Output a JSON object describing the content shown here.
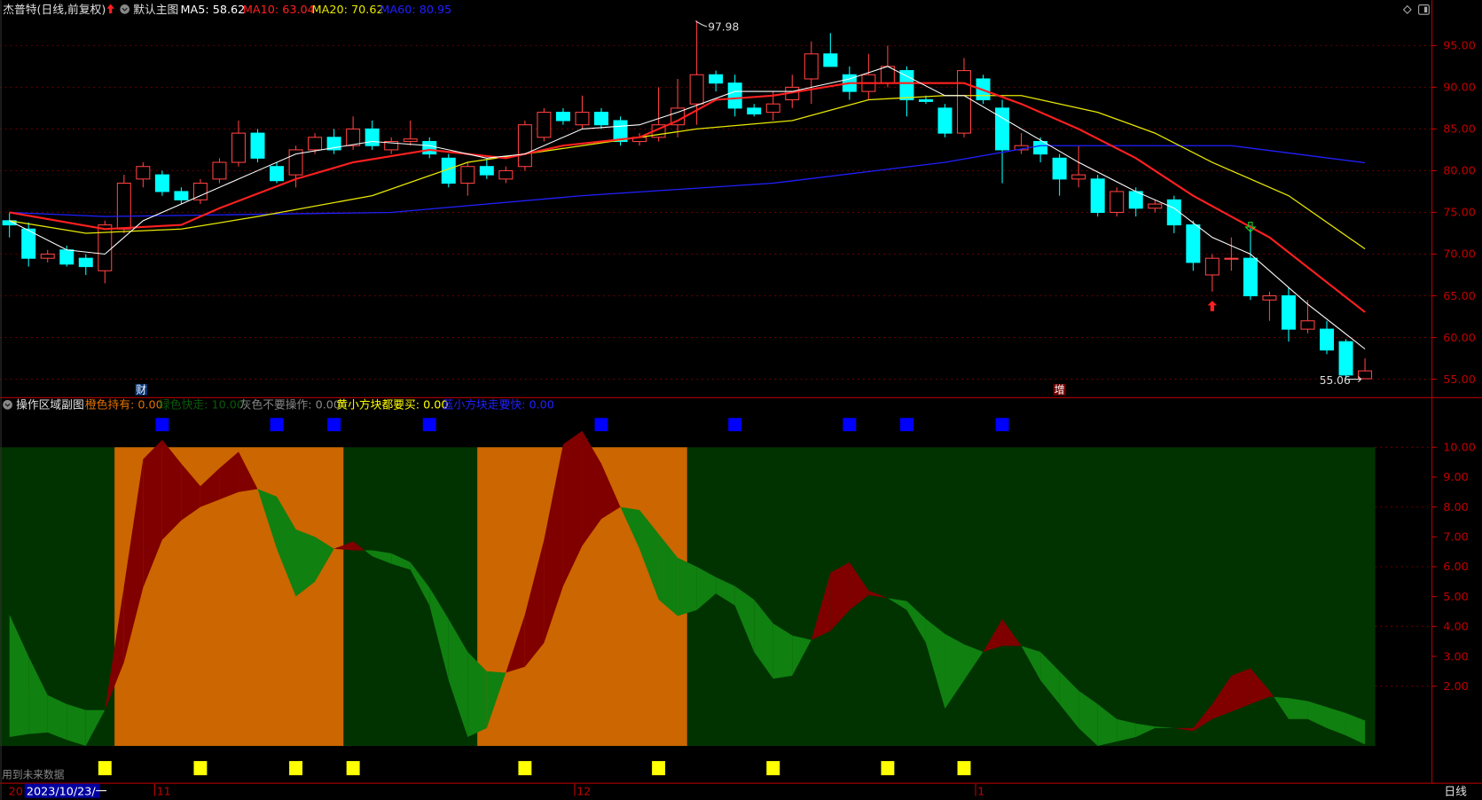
{
  "header": {
    "title": "杰普特(日线,前复权)",
    "main_chart_name": "默认主图",
    "ma5": "MA5: 58.62",
    "ma10": "MA10: 63.04",
    "ma20": "MA20: 70.62",
    "ma60": "MA60: 80.95",
    "colors": {
      "ma5": "#ffffff",
      "ma10": "#ff2020",
      "ma20": "#e8e800",
      "ma60": "#2020ff"
    }
  },
  "sub_header": {
    "name": "操作区域副图",
    "orange": "橙色持有: 0.00",
    "green": "绿色快走: 10.00",
    "gray": "灰色不要操作: 0.00",
    "yellow": "黄小方块都要买: 0.00",
    "blue": "蓝小方块走要快: 0.00"
  },
  "annotations": {
    "high_label": "97.98",
    "low_label": "55.06",
    "marker_cai": "财",
    "marker_zeng": "增",
    "future_data_note": "用到未来数据"
  },
  "date_axis": {
    "year_prefix": "20",
    "cursor_date": "2023/10/23/一",
    "months": [
      {
        "label": "11",
        "index": 8
      },
      {
        "label": "12",
        "index": 30
      },
      {
        "label": "1",
        "index": 51
      }
    ],
    "period_button": "日线"
  },
  "price_axis": {
    "ticks": [
      "95.00",
      "90.00",
      "85.00",
      "80.00",
      "75.00",
      "70.00",
      "65.00",
      "60.00",
      "55.00"
    ]
  },
  "sub_axis": {
    "ticks": [
      "10.00",
      "9.00",
      "8.00",
      "7.00",
      "6.00",
      "5.00",
      "4.00",
      "3.00",
      "2.00"
    ]
  },
  "colors": {
    "up": "#ff4040",
    "down": "#00ffff",
    "grid": "#7a0000",
    "axis": "#c00000",
    "sub_bg": "#003300",
    "orange": "#cc6600",
    "green_fill": "#108010",
    "red_fill": "#800000",
    "blue_square": "#0000ff",
    "yellow_square": "#ffff00"
  },
  "chart_data": {
    "type": "candlestick",
    "price_range": [
      55,
      95
    ],
    "candles_ohlc": [
      [
        74.0,
        75.0,
        72.0,
        73.5
      ],
      [
        73.0,
        73.8,
        68.5,
        69.5
      ],
      [
        69.5,
        70.5,
        69.0,
        70.0
      ],
      [
        70.5,
        71.0,
        68.5,
        68.8
      ],
      [
        69.5,
        70.0,
        67.5,
        68.5
      ],
      [
        68.0,
        74.0,
        66.5,
        73.5
      ],
      [
        73.0,
        79.5,
        72.5,
        78.5
      ],
      [
        79.0,
        81.0,
        78.0,
        80.5
      ],
      [
        79.5,
        80.0,
        77.0,
        77.5
      ],
      [
        77.5,
        78.0,
        76.0,
        76.5
      ],
      [
        76.5,
        79.0,
        76.0,
        78.5
      ],
      [
        79.0,
        81.5,
        78.5,
        81.0
      ],
      [
        81.0,
        86.0,
        80.5,
        84.5
      ],
      [
        84.5,
        85.0,
        81.0,
        81.5
      ],
      [
        80.5,
        81.0,
        78.5,
        78.8
      ],
      [
        79.5,
        83.0,
        78.0,
        82.5
      ],
      [
        82.5,
        84.5,
        82.0,
        84.0
      ],
      [
        84.0,
        85.0,
        82.0,
        82.5
      ],
      [
        83.0,
        86.5,
        82.5,
        85.0
      ],
      [
        85.0,
        86.0,
        82.5,
        83.0
      ],
      [
        82.5,
        84.0,
        82.0,
        83.5
      ],
      [
        83.5,
        86.0,
        83.0,
        83.8
      ],
      [
        83.5,
        84.0,
        81.5,
        82.0
      ],
      [
        81.5,
        82.0,
        78.0,
        78.5
      ],
      [
        78.5,
        81.0,
        77.0,
        80.5
      ],
      [
        80.5,
        81.5,
        79.0,
        79.5
      ],
      [
        79.0,
        80.5,
        78.5,
        80.0
      ],
      [
        80.5,
        86.0,
        80.0,
        85.5
      ],
      [
        84.0,
        87.5,
        83.5,
        87.0
      ],
      [
        87.0,
        87.5,
        85.5,
        86.0
      ],
      [
        85.5,
        89.0,
        85.0,
        87.0
      ],
      [
        87.0,
        87.5,
        85.0,
        85.5
      ],
      [
        86.0,
        86.5,
        83.0,
        83.5
      ],
      [
        83.5,
        84.5,
        83.0,
        84.0
      ],
      [
        84.0,
        90.0,
        83.5,
        85.5
      ],
      [
        85.5,
        91.0,
        84.0,
        87.5
      ],
      [
        88.0,
        97.98,
        85.5,
        91.5
      ],
      [
        91.5,
        92.0,
        89.5,
        90.5
      ],
      [
        90.5,
        91.5,
        86.5,
        87.5
      ],
      [
        87.5,
        88.0,
        86.5,
        86.8
      ],
      [
        87.0,
        89.5,
        86.0,
        88.0
      ],
      [
        88.5,
        91.5,
        87.5,
        90.0
      ],
      [
        91.0,
        95.5,
        88.0,
        94.0
      ],
      [
        94.0,
        96.5,
        92.5,
        92.5
      ],
      [
        91.5,
        92.5,
        88.5,
        89.5
      ],
      [
        89.5,
        94.0,
        88.5,
        91.5
      ],
      [
        90.5,
        95.0,
        90.0,
        92.5
      ],
      [
        92.0,
        92.5,
        86.5,
        88.5
      ],
      [
        88.5,
        89.0,
        88.0,
        88.3
      ],
      [
        87.5,
        88.0,
        84.0,
        84.5
      ],
      [
        84.5,
        93.5,
        84.0,
        92.0
      ],
      [
        91.0,
        91.5,
        88.0,
        88.5
      ],
      [
        87.5,
        88.5,
        78.5,
        82.5
      ],
      [
        82.5,
        84.5,
        82.0,
        83.0
      ],
      [
        83.5,
        84.0,
        81.0,
        82.0
      ],
      [
        81.5,
        82.0,
        77.0,
        79.0
      ],
      [
        79.0,
        83.0,
        78.0,
        79.5
      ],
      [
        79.0,
        79.5,
        74.5,
        75.0
      ],
      [
        75.0,
        78.0,
        74.5,
        77.5
      ],
      [
        77.5,
        78.0,
        74.5,
        75.5
      ],
      [
        75.5,
        76.5,
        75.0,
        76.0
      ],
      [
        76.5,
        77.0,
        72.5,
        73.5
      ],
      [
        73.5,
        74.0,
        68.0,
        69.0
      ],
      [
        67.5,
        70.0,
        65.5,
        69.5
      ],
      [
        69.5,
        72.0,
        68.0,
        69.5
      ],
      [
        69.5,
        73.5,
        64.5,
        65.0
      ],
      [
        64.5,
        65.5,
        62.0,
        65.0
      ],
      [
        65.0,
        66.0,
        59.5,
        61.0
      ],
      [
        61.0,
        64.5,
        60.5,
        62.0
      ],
      [
        61.0,
        62.0,
        58.0,
        58.5
      ],
      [
        59.5,
        59.8,
        55.06,
        55.5
      ],
      [
        55.06,
        57.5,
        55.06,
        56.0
      ]
    ],
    "ma5": [
      [
        0,
        74
      ],
      [
        3,
        70.5
      ],
      [
        5,
        70
      ],
      [
        7,
        74
      ],
      [
        10,
        77
      ],
      [
        13,
        80
      ],
      [
        15,
        82
      ],
      [
        19,
        83.5
      ],
      [
        22,
        83
      ],
      [
        25,
        81.5
      ],
      [
        27,
        82
      ],
      [
        30,
        85
      ],
      [
        33,
        85.5
      ],
      [
        35,
        87
      ],
      [
        38,
        89.5
      ],
      [
        41,
        89.5
      ],
      [
        44,
        91
      ],
      [
        46,
        92.5
      ],
      [
        49,
        89
      ],
      [
        50,
        89
      ],
      [
        53,
        85
      ],
      [
        56,
        81
      ],
      [
        59,
        77.5
      ],
      [
        61,
        75.5
      ],
      [
        63,
        72
      ],
      [
        65,
        70
      ],
      [
        68,
        64
      ],
      [
        71,
        58.62
      ]
    ],
    "ma10": [
      [
        0,
        75
      ],
      [
        5,
        73
      ],
      [
        9,
        73.5
      ],
      [
        11,
        75.5
      ],
      [
        15,
        79
      ],
      [
        18,
        81
      ],
      [
        22,
        82.5
      ],
      [
        26,
        81.5
      ],
      [
        29,
        83
      ],
      [
        33,
        84
      ],
      [
        35,
        86
      ],
      [
        37,
        88.5
      ],
      [
        40,
        89
      ],
      [
        44,
        90.5
      ],
      [
        47,
        90.5
      ],
      [
        50,
        90.5
      ],
      [
        53,
        88
      ],
      [
        56,
        85
      ],
      [
        59,
        81.5
      ],
      [
        62,
        77
      ],
      [
        66,
        72
      ],
      [
        71,
        63.04
      ]
    ],
    "ma20": [
      [
        0,
        74
      ],
      [
        4,
        72.5
      ],
      [
        9,
        73
      ],
      [
        13,
        74.5
      ],
      [
        19,
        77
      ],
      [
        24,
        81
      ],
      [
        30,
        83
      ],
      [
        36,
        85
      ],
      [
        41,
        86
      ],
      [
        45,
        88.5
      ],
      [
        49,
        89
      ],
      [
        53,
        89
      ],
      [
        57,
        87
      ],
      [
        60,
        84.5
      ],
      [
        63,
        81
      ],
      [
        67,
        77
      ],
      [
        71,
        70.62
      ]
    ],
    "ma60": [
      [
        0,
        75
      ],
      [
        5,
        74.5
      ],
      [
        20,
        75
      ],
      [
        30,
        77
      ],
      [
        40,
        78.5
      ],
      [
        49,
        81
      ],
      [
        54,
        83
      ],
      [
        64,
        83
      ],
      [
        71,
        80.95
      ]
    ],
    "sub_range": [
      0,
      10
    ],
    "sub_fast": [
      0.3,
      0.4,
      0.45,
      0.2,
      0.0,
      1.2,
      5.35,
      9.6,
      10.25,
      9.45,
      8.7,
      9.3,
      9.85,
      8.6,
      6.6,
      5.0,
      5.5,
      6.6,
      6.85,
      6.35,
      6.1,
      5.9,
      4.7,
      2.2,
      0.3,
      0.6,
      2.45,
      4.4,
      6.9,
      10.1,
      10.55,
      9.45,
      8.0,
      6.6,
      4.9,
      4.35,
      4.55,
      5.1,
      4.7,
      3.15,
      2.25,
      2.35,
      3.55,
      5.8,
      6.15,
      5.2,
      4.95,
      4.55,
      3.45,
      1.25,
      2.2,
      3.15,
      4.25,
      3.35,
      2.2,
      1.4,
      0.6,
      0.0,
      0.15,
      0.3,
      0.6,
      0.6,
      0.6,
      1.4,
      2.35,
      2.6,
      1.85,
      0.9,
      0.9,
      0.6,
      0.35,
      0.05
    ],
    "sub_slow": [
      4.4,
      3.0,
      1.7,
      1.4,
      1.2,
      1.2,
      2.8,
      5.3,
      6.9,
      7.55,
      8.0,
      8.25,
      8.5,
      8.6,
      8.35,
      7.25,
      7.0,
      6.6,
      6.55,
      6.55,
      6.45,
      6.15,
      5.3,
      4.25,
      3.15,
      2.5,
      2.45,
      2.65,
      3.45,
      5.35,
      6.7,
      7.6,
      8.0,
      7.9,
      7.1,
      6.3,
      6.0,
      5.65,
      5.35,
      4.9,
      4.1,
      3.7,
      3.55,
      3.85,
      4.55,
      5.05,
      4.95,
      4.85,
      4.25,
      3.75,
      3.4,
      3.15,
      3.35,
      3.35,
      3.15,
      2.5,
      1.85,
      1.4,
      0.9,
      0.75,
      0.65,
      0.6,
      0.5,
      0.9,
      1.15,
      1.4,
      1.65,
      1.6,
      1.5,
      1.3,
      1.1,
      0.85
    ],
    "orange_hold_ranges": [
      [
        6,
        17
      ],
      [
        25,
        35
      ]
    ],
    "blue_square_indices": [
      8,
      14,
      17,
      22,
      31,
      38,
      44,
      47,
      52
    ],
    "yellow_square_indices": [
      5,
      10,
      15,
      18,
      27,
      34,
      40,
      46,
      50
    ],
    "buy_arrow_index": 63,
    "sell_arrow_index": 65,
    "cai_marker_index": 7,
    "zeng_marker_index": 55
  }
}
